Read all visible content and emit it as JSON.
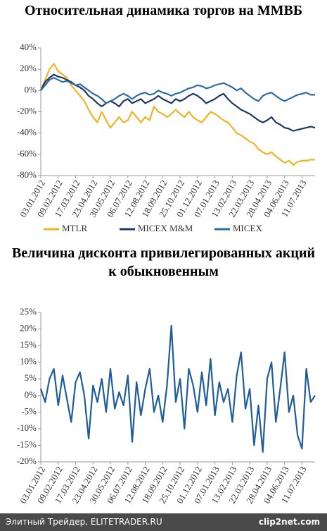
{
  "chart_data": [
    {
      "type": "line",
      "title": "Относительная динамика торгов на ММВБ",
      "categories": [
        "03.01.2012",
        null,
        null,
        null,
        "09.02.2012",
        null,
        null,
        null,
        "17.03.2012",
        null,
        null,
        null,
        "23.04.2012",
        null,
        null,
        null,
        "30.05.2012",
        null,
        null,
        null,
        "06.07.2012",
        null,
        null,
        null,
        "12.08.2012",
        null,
        null,
        null,
        "18.09.2012",
        null,
        null,
        null,
        "25.10.2012",
        null,
        null,
        null,
        "01.12.2012",
        null,
        null,
        null,
        "07.01.2013",
        null,
        null,
        null,
        "13.02.2013",
        null,
        null,
        null,
        "22.03.2013",
        null,
        null,
        null,
        "28.04.2013",
        null,
        null,
        null,
        "04.06.2013",
        null,
        null,
        null,
        "11.07.2013",
        null,
        null,
        null
      ],
      "series": [
        {
          "name": "MTLR",
          "color": "#f0b323",
          "values": [
            0,
            10,
            20,
            25,
            18,
            15,
            12,
            5,
            0,
            -5,
            -10,
            -18,
            -25,
            -30,
            -20,
            -28,
            -35,
            -30,
            -25,
            -30,
            -28,
            -20,
            -25,
            -30,
            -25,
            -28,
            -15,
            -20,
            -22,
            -25,
            -22,
            -18,
            -22,
            -25,
            -20,
            -25,
            -28,
            -30,
            -25,
            -20,
            -22,
            -25,
            -28,
            -30,
            -35,
            -40,
            -42,
            -45,
            -48,
            -50,
            -55,
            -58,
            -60,
            -58,
            -62,
            -65,
            -68,
            -66,
            -70,
            -67,
            -66,
            -66,
            -65,
            -65
          ]
        },
        {
          "name": "MICEX M&M",
          "color": "#1f3864",
          "values": [
            0,
            8,
            12,
            15,
            13,
            12,
            10,
            8,
            5,
            3,
            0,
            -5,
            -8,
            -12,
            -15,
            -12,
            -10,
            -12,
            -15,
            -10,
            -8,
            -12,
            -10,
            -8,
            -12,
            -10,
            -8,
            -5,
            -8,
            -10,
            -12,
            -8,
            -10,
            -8,
            -5,
            -3,
            -5,
            -8,
            -12,
            -10,
            -8,
            -5,
            -3,
            -8,
            -12,
            -15,
            -18,
            -20,
            -22,
            -25,
            -28,
            -30,
            -28,
            -25,
            -30,
            -32,
            -35,
            -36,
            -38,
            -37,
            -36,
            -35,
            -34,
            -35
          ]
        },
        {
          "name": "MICEX",
          "color": "#2e6da4",
          "values": [
            0,
            5,
            10,
            12,
            10,
            8,
            9,
            7,
            5,
            6,
            3,
            0,
            -3,
            -5,
            -8,
            -12,
            -10,
            -8,
            -5,
            -3,
            -5,
            -8,
            -5,
            -3,
            -2,
            -4,
            -3,
            0,
            -2,
            -3,
            -5,
            -3,
            -2,
            0,
            2,
            3,
            5,
            4,
            2,
            3,
            5,
            6,
            7,
            5,
            3,
            0,
            2,
            -2,
            -5,
            -8,
            -10,
            -5,
            -3,
            -2,
            -5,
            -8,
            -10,
            -8,
            -6,
            -4,
            -3,
            -2,
            -4,
            -4
          ]
        }
      ],
      "ylim": [
        -80,
        40
      ],
      "yticks": [
        {
          "value": -80,
          "label": "-80%"
        },
        {
          "value": -60,
          "label": "-60%"
        },
        {
          "value": -40,
          "label": "-40%"
        },
        {
          "value": -20,
          "label": "-20%"
        },
        {
          "value": 0,
          "label": "0%"
        },
        {
          "value": 20,
          "label": "20%"
        },
        {
          "value": 40,
          "label": "40%"
        }
      ],
      "grid": false,
      "legend": "bottom"
    },
    {
      "type": "line",
      "title": "Величина дисконта привилегированных акций к обыкновенным",
      "categories": [
        "03.01.2012",
        null,
        null,
        null,
        "09.02.2012",
        null,
        null,
        null,
        "17.03.2012",
        null,
        null,
        null,
        "23.04.2012",
        null,
        null,
        null,
        "30.05.2012",
        null,
        null,
        null,
        "06.07.2012",
        null,
        null,
        null,
        "12.08.2012",
        null,
        null,
        null,
        "18.09.2012",
        null,
        null,
        null,
        "25.10.2012",
        null,
        null,
        null,
        "01.12.2012",
        null,
        null,
        null,
        "07.01.2013",
        null,
        null,
        null,
        "13.02.2013",
        null,
        null,
        null,
        "22.03.2013",
        null,
        null,
        null,
        "28.04.2013",
        null,
        null,
        null,
        "04.06.2013",
        null,
        null,
        null,
        "11.07.2013",
        null,
        null,
        null
      ],
      "color": "#1f5c99",
      "values": [
        2,
        -2,
        5,
        8,
        -3,
        6,
        -1,
        -8,
        4,
        7,
        0,
        -13,
        3,
        -2,
        5,
        -5,
        8,
        -4,
        1,
        -3,
        6,
        -14,
        4,
        -6,
        2,
        8,
        -5,
        0,
        -8,
        3,
        21,
        -2,
        5,
        -10,
        8,
        3,
        -5,
        7,
        -3,
        11,
        -6,
        4,
        -2,
        2,
        -8,
        6,
        13,
        -4,
        2,
        -15,
        -3,
        -17,
        5,
        10,
        -8,
        2,
        13,
        -5,
        0,
        -12,
        -16,
        8,
        -2,
        0
      ],
      "ylim": [
        -20,
        25
      ],
      "yticks": [
        {
          "value": -20,
          "label": "-20%"
        },
        {
          "value": -15,
          "label": "-15%"
        },
        {
          "value": -10,
          "label": "-10%"
        },
        {
          "value": -5,
          "label": "-5%"
        },
        {
          "value": 0,
          "label": "0%"
        },
        {
          "value": 5,
          "label": "5%"
        },
        {
          "value": 10,
          "label": "10%"
        },
        {
          "value": 15,
          "label": "15%"
        },
        {
          "value": 20,
          "label": "20%"
        },
        {
          "value": 25,
          "label": "25%"
        }
      ],
      "grid": false
    }
  ],
  "footer": {
    "source": "Элитный Трейдер, ELITETRADER.RU",
    "watermark": "clip2net.com"
  }
}
